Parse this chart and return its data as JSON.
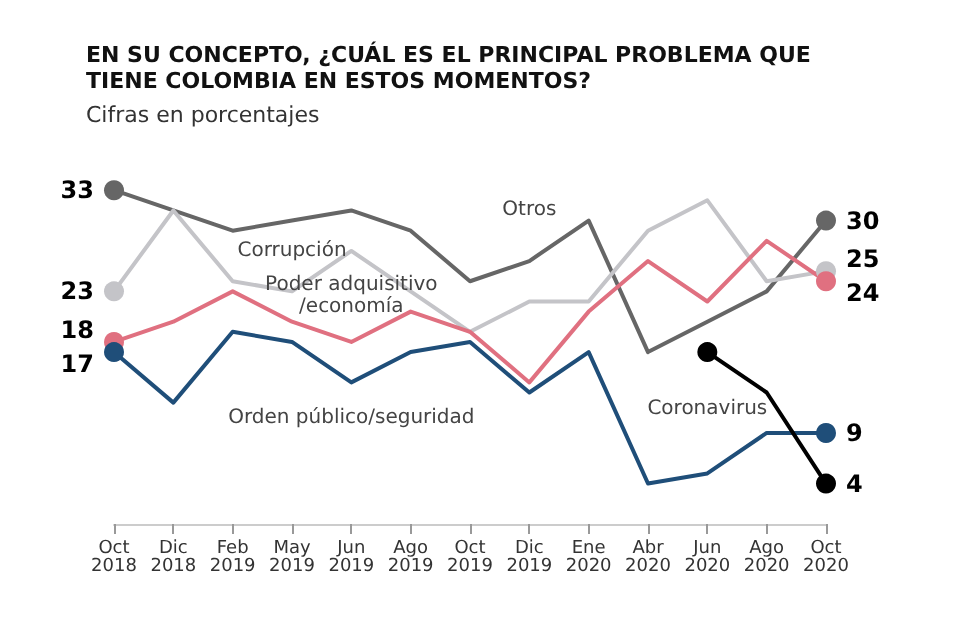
{
  "chart_data": {
    "type": "line",
    "title": "EN SU CONCEPTO, ¿CUÁL ES EL PRINCIPAL PROBLEMA QUE TIENE COLOMBIA EN ESTOS MOMENTOS?",
    "subtitle": "Cifras en porcentajes",
    "categories": [
      "Oct 2018",
      "Dic 2018",
      "Feb 2019",
      "May 2019",
      "Jun 2019",
      "Ago 2019",
      "Oct 2019",
      "Dic 2019",
      "Ene 2020",
      "Abr 2020",
      "Jun 2020",
      "Ago 2020",
      "Oct 2020"
    ],
    "series": [
      {
        "name": "Otros",
        "color": "#666666",
        "values": [
          33,
          31,
          29,
          30,
          31,
          29,
          24,
          26,
          30,
          17,
          20,
          23,
          30
        ],
        "value_labels": [
          "33",
          null,
          null,
          null,
          null,
          null,
          null,
          null,
          null,
          null,
          null,
          null,
          "30"
        ]
      },
      {
        "name": "Corrupción",
        "color": "#c4c4c8",
        "values": [
          23,
          31,
          24,
          23,
          27,
          23,
          19,
          22,
          22,
          29,
          32,
          24,
          25
        ],
        "value_labels": [
          "23",
          null,
          null,
          null,
          null,
          null,
          null,
          null,
          null,
          null,
          null,
          null,
          "25"
        ]
      },
      {
        "name": "Poder adquisitivo\n/economía",
        "color": "#e07080",
        "values": [
          18,
          20,
          23,
          20,
          18,
          21,
          19,
          14,
          21,
          26,
          22,
          28,
          24
        ],
        "value_labels": [
          "18",
          null,
          null,
          null,
          null,
          null,
          null,
          null,
          null,
          null,
          null,
          null,
          "24"
        ]
      },
      {
        "name": "Orden público/seguridad",
        "color": "#1f4e79",
        "values": [
          17,
          12,
          19,
          18,
          14,
          17,
          18,
          13,
          17,
          4,
          5,
          9,
          9
        ],
        "value_labels": [
          "17",
          null,
          null,
          null,
          null,
          null,
          null,
          null,
          null,
          null,
          null,
          null,
          "9"
        ]
      },
      {
        "name": "Coronavirus",
        "color": "#000000",
        "values": [
          null,
          null,
          null,
          null,
          null,
          null,
          null,
          null,
          null,
          null,
          17,
          13,
          4
        ],
        "value_labels": [
          null,
          null,
          null,
          null,
          null,
          null,
          null,
          null,
          null,
          null,
          null,
          null,
          "4"
        ]
      }
    ]
  }
}
